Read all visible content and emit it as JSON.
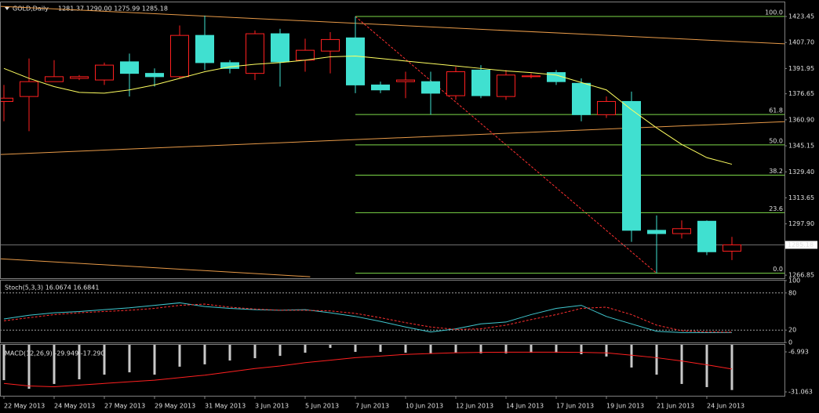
{
  "chart_data": [
    {
      "type": "candlestick",
      "symbol": "GOLD,Daily",
      "ohlc_text": "1281.37 1290.00 1275.99 1285.18",
      "categories": [
        "22 May 2013",
        null,
        "24 May 2013",
        null,
        "27 May 2013",
        null,
        "29 May 2013",
        null,
        "31 May 2013",
        null,
        "3 Jun 2013",
        null,
        "5 Jun 2013",
        null,
        "7 Jun 2013",
        null,
        "10 Jun 2013",
        null,
        "12 Jun 2013",
        null,
        "14 Jun 2013",
        null,
        "17 Jun 2013",
        null,
        "19 Jun 2013",
        null,
        "21 Jun 2013",
        null,
        "24 Jun 2013",
        null
      ],
      "open": [
        1372,
        1375,
        1384,
        1386,
        1385,
        1396,
        1389,
        1387,
        1412,
        1395.5,
        1389,
        1413,
        1397,
        1402.5,
        1410.5,
        1382,
        1384,
        1384,
        1375.5,
        1391,
        1375,
        1387,
        1389.5,
        1383,
        1364,
        1372,
        1294,
        1292,
        1299.5,
        1281.37
      ],
      "high": [
        1382,
        1398,
        1397,
        1388,
        1395.5,
        1401,
        1392,
        1418,
        1424,
        1397,
        1415,
        1416,
        1410,
        1414,
        1423.45,
        1384,
        1390,
        1390,
        1393,
        1394,
        1391,
        1389,
        1391,
        1386,
        1375,
        1378,
        1303,
        1300,
        1300,
        1290
      ],
      "low": [
        1360,
        1354,
        1384,
        1385,
        1382,
        1375,
        1381,
        1386,
        1391,
        1389,
        1385,
        1381,
        1390,
        1389,
        1377,
        1377,
        1374,
        1364,
        1373,
        1374,
        1373,
        1386,
        1382,
        1360,
        1362,
        1287,
        1268,
        1289,
        1279,
        1275.99
      ],
      "close": [
        1374,
        1384,
        1387,
        1387,
        1394,
        1389,
        1387,
        1412,
        1395.5,
        1392,
        1413,
        1396,
        1403,
        1409.5,
        1382,
        1379,
        1385,
        1377,
        1390,
        1375.5,
        1388,
        1387.5,
        1384,
        1364,
        1372,
        1294,
        1292,
        1295,
        1281,
        1285.18
      ],
      "up_color": "#ff2020",
      "down_color": "#40e0d0",
      "up_fill": "#000000",
      "moving_average": {
        "color": "#ffff60",
        "values": [
          1392,
          1386,
          1381,
          1377.5,
          1377,
          1379,
          1382,
          1386,
          1390,
          1393,
          1394.5,
          1395.5,
          1397,
          1399,
          1399.5,
          1398,
          1396.5,
          1395,
          1393.5,
          1392,
          1390.5,
          1389.5,
          1388,
          1383.5,
          1379,
          1367,
          1356,
          1346,
          1338,
          1334
        ]
      },
      "fib": {
        "color": "#7cd848",
        "start": 14,
        "levels": [
          {
            "label": "100.0",
            "price": 1423.45
          },
          {
            "label": "61.8",
            "price": 1364.1
          },
          {
            "label": "50.0",
            "price": 1345.7
          },
          {
            "label": "38.2",
            "price": 1327.4
          },
          {
            "label": "23.6",
            "price": 1304.7
          },
          {
            "label": "0.0",
            "price": 1268
          }
        ]
      },
      "trendlines": [
        {
          "color": "#e89a48",
          "dashed": false,
          "x": [
            -0.16,
            31.1
          ],
          "y": [
            1429.6,
            1406.9
          ]
        },
        {
          "color": "#e89a48",
          "dashed": false,
          "x": [
            -0.16,
            31.1
          ],
          "y": [
            1339.9,
            1359.8
          ]
        },
        {
          "color": "#e89a48",
          "dashed": false,
          "x": [
            -0.16,
            12.2
          ],
          "y": [
            1276.8,
            1265.9
          ]
        },
        {
          "color": "#ff3030",
          "dashed": true,
          "x": [
            14,
            26
          ],
          "y": [
            1423.45,
            1268
          ]
        }
      ],
      "price_marker": 1285.18,
      "ylim": [
        1265.0,
        1432.0
      ],
      "yticks": [
        1423.45,
        {
          "value": 1407.7,
          "label": "1407.70"
        },
        1391.95,
        1376.65,
        {
          "value": 1360.9,
          "label": "1360.90"
        },
        1345.15,
        {
          "value": 1329.4,
          "label": "1329.40"
        },
        1313.65,
        {
          "value": 1297.9,
          "label": "1297.90"
        },
        1266.85
      ]
    },
    {
      "type": "line",
      "title": "Stoch(5,3,3) 16.0674 16.6841",
      "series": [
        {
          "color": "#40c8d0",
          "dashed": false,
          "values": [
            38,
            44,
            48,
            50,
            53,
            56,
            60,
            64,
            58,
            55,
            53,
            52,
            53,
            48,
            42,
            34,
            25,
            17,
            22,
            30,
            33,
            45,
            55,
            60,
            42,
            30,
            18,
            16,
            16,
            16.0674
          ]
        },
        {
          "color": "#ff3030",
          "dashed": true,
          "values": [
            35,
            40,
            45,
            48,
            50,
            52,
            55,
            60,
            62,
            57,
            54,
            52,
            52,
            51,
            47,
            40,
            32,
            25,
            21,
            22,
            28,
            37,
            45,
            55,
            57,
            45,
            28,
            19,
            17,
            16.6841
          ]
        }
      ],
      "levels": [
        80,
        20
      ],
      "ylim": [
        0,
        100
      ],
      "yticks": [
        100,
        80,
        20,
        0
      ]
    },
    {
      "type": "macd",
      "title": "MACD(12,26,9) -29.949 -17.290",
      "series": [
        {
          "style": "bar",
          "color": "#c8c8c8",
          "values": [
            -24.0,
            -29.2,
            -26.3,
            -23.5,
            -20.7,
            -19.3,
            -20.7,
            -15.9,
            -14.5,
            -12.2,
            -10.8,
            -9.4,
            -7.5,
            -4.6,
            -7.0,
            -7.0,
            -7.5,
            -7.9,
            -7.5,
            -7.9,
            -7.9,
            -7.5,
            -7.5,
            -8.4,
            -9.8,
            -16.4,
            -20.7,
            -26.3,
            -28.2,
            -29.949
          ]
        },
        {
          "style": "line",
          "color": "#ff2020",
          "values": [
            -26,
            -27.5,
            -28,
            -27,
            -26,
            -25,
            -24,
            -22.5,
            -21,
            -19,
            -17,
            -15.5,
            -13.5,
            -12,
            -10.5,
            -9.5,
            -8.5,
            -8,
            -7.5,
            -7.3,
            -7.2,
            -7.2,
            -7.2,
            -7.3,
            -7.6,
            -9,
            -10.5,
            -12.5,
            -14.8,
            -17.29
          ]
        }
      ],
      "ylim": [
        -33.4,
        -2.75
      ],
      "yticks": [
        -6.993,
        -31.063
      ]
    }
  ]
}
